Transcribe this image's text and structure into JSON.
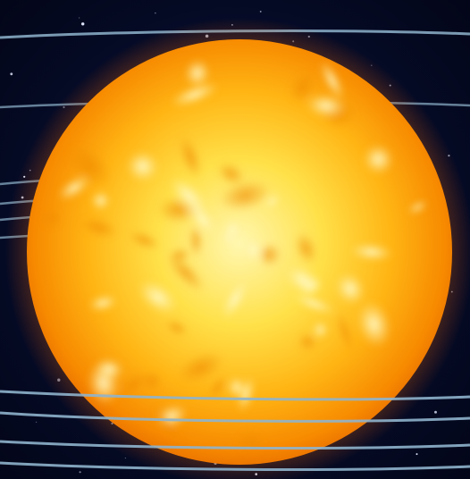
{
  "scene": {
    "subject": "sun",
    "background": "starfield",
    "overlay": "orbit-lines"
  },
  "colors": {
    "space": "#050a22",
    "sun_core": "#fff6a8",
    "sun_mid": "#ffc21a",
    "sun_edge": "#f07a00",
    "corona": "#ff9a00",
    "orbit_line": "#8fb4cc"
  }
}
